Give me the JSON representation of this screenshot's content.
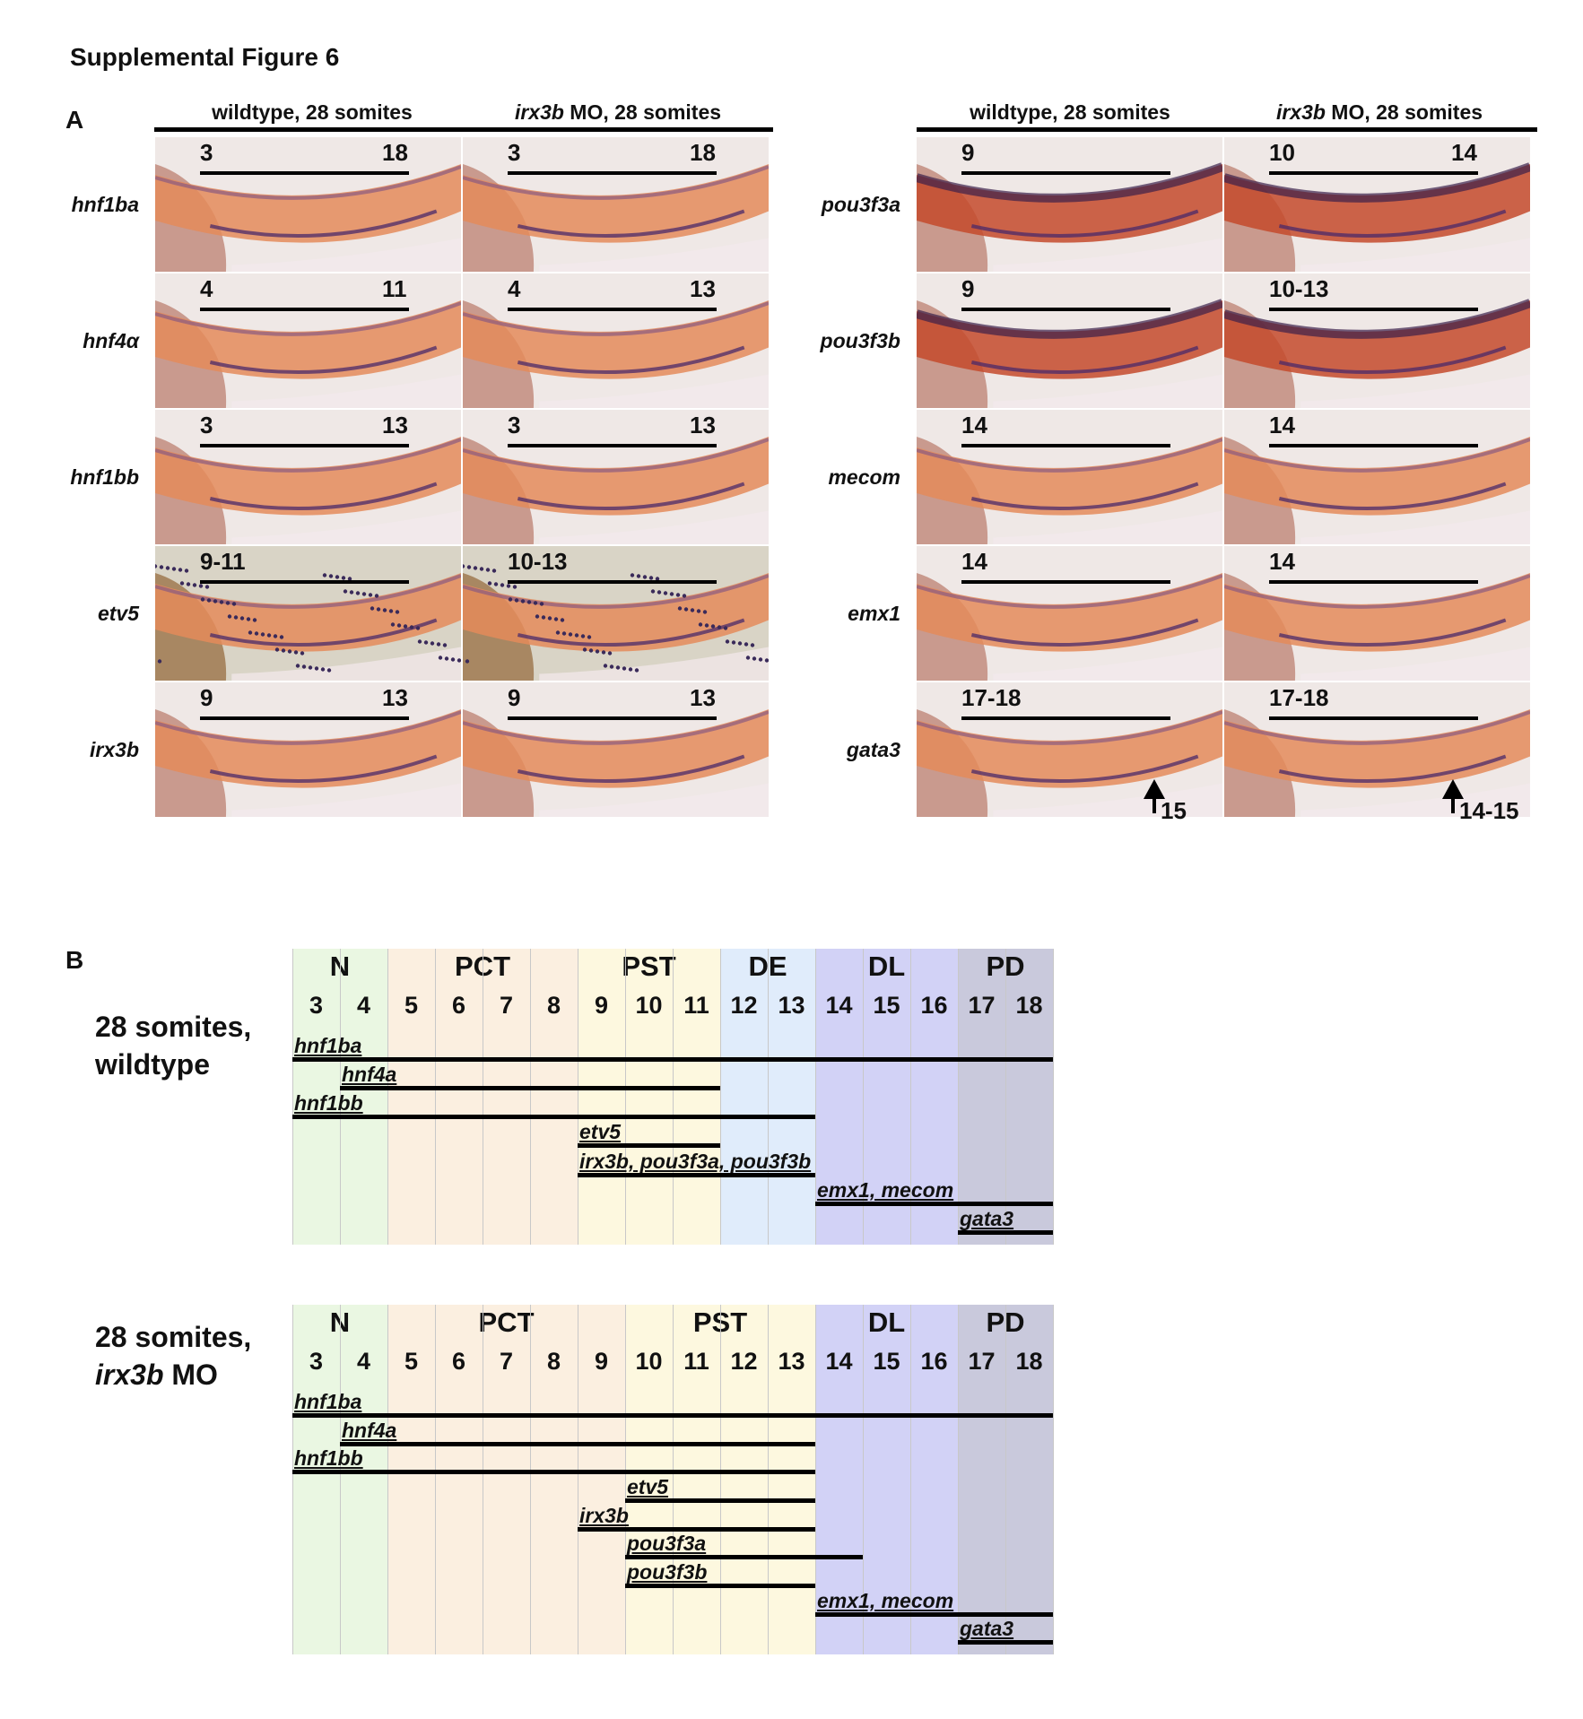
{
  "figure_title": "Supplemental Figure 6",
  "panel_a": {
    "letter": "A",
    "left_headers": {
      "wt": "wildtype, 28 somites",
      "mo_gene": "irx3b",
      "mo_rest": " MO, 28 somites"
    },
    "right_headers": {
      "wt": "wildtype, 28 somites",
      "mo_gene": "irx3b",
      "mo_rest": " MO, 28 somites"
    },
    "left_rows": [
      {
        "gene": "hnf1ba",
        "wt": {
          "a": "3",
          "b": "18"
        },
        "mo": {
          "a": "3",
          "b": "18"
        }
      },
      {
        "gene": "hnf4α",
        "wt": {
          "a": "4",
          "b": "11"
        },
        "mo": {
          "a": "4",
          "b": "13"
        }
      },
      {
        "gene": "hnf1bb",
        "wt": {
          "a": "3",
          "b": "13"
        },
        "mo": {
          "a": "3",
          "b": "13"
        }
      },
      {
        "gene": "etv5",
        "wt": {
          "a": "9-11",
          "b": ""
        },
        "mo": {
          "a": "10-13",
          "b": ""
        }
      },
      {
        "gene": "irx3b",
        "wt": {
          "a": "9",
          "b": "13"
        },
        "mo": {
          "a": "9",
          "b": "13"
        }
      }
    ],
    "right_rows": [
      {
        "gene": "pou3f3a",
        "wt": {
          "a": "9",
          "b": ""
        },
        "mo": {
          "a": "10",
          "b": "14"
        }
      },
      {
        "gene": "pou3f3b",
        "wt": {
          "a": "9",
          "b": ""
        },
        "mo": {
          "a": "10-13",
          "b": ""
        }
      },
      {
        "gene": "mecom",
        "wt": {
          "a": "14",
          "b": ""
        },
        "mo": {
          "a": "14",
          "b": ""
        }
      },
      {
        "gene": "emx1",
        "wt": {
          "a": "14",
          "b": ""
        },
        "mo": {
          "a": "14",
          "b": ""
        }
      },
      {
        "gene": "gata3",
        "wt": {
          "a": "17-18",
          "b": ""
        },
        "mo": {
          "a": "17-18",
          "b": ""
        }
      }
    ],
    "gata3_arrows": {
      "wt": "15",
      "mo": "14-15"
    }
  },
  "panel_b": {
    "letter": "B",
    "wildtype": {
      "label_line1": "28 somites,",
      "label_line2": "wildtype",
      "zones": [
        {
          "name": "N",
          "from": 3,
          "to": 4,
          "color": "#eaf7e2"
        },
        {
          "name": "PCT",
          "from": 5,
          "to": 8,
          "color": "#fbefe0"
        },
        {
          "name": "PST",
          "from": 9,
          "to": 11,
          "color": "#fdf8df"
        },
        {
          "name": "DE",
          "from": 12,
          "to": 13,
          "color": "#e0ecfb"
        },
        {
          "name": "DL",
          "from": 14,
          "to": 16,
          "color": "#d2d2f6"
        },
        {
          "name": "PD",
          "from": 17,
          "to": 18,
          "color": "#c9c9dc"
        }
      ],
      "segments": [
        "3",
        "4",
        "5",
        "6",
        "7",
        "8",
        "9",
        "10",
        "11",
        "12",
        "13",
        "14",
        "15",
        "16",
        "17",
        "18"
      ],
      "genes": [
        {
          "label": "hnf1ba",
          "from": 3,
          "to": 18
        },
        {
          "label": "hnf4a",
          "from": 4,
          "to": 11
        },
        {
          "label": "hnf1bb",
          "from": 3,
          "to": 13
        },
        {
          "label": "etv5",
          "from": 9,
          "to": 11
        },
        {
          "label": "irx3b, pou3f3a, pou3f3b",
          "from": 9,
          "to": 13
        },
        {
          "label": "emx1, mecom",
          "from": 14,
          "to": 18
        },
        {
          "label": "gata3",
          "from": 17,
          "to": 18
        }
      ]
    },
    "morphant": {
      "label_line1": "28 somites,",
      "label_gene": "irx3b",
      "label_rest": " MO",
      "zones": [
        {
          "name": "N",
          "from": 3,
          "to": 4,
          "color": "#eaf7e2"
        },
        {
          "name": "PCT",
          "from": 5,
          "to": 9,
          "color": "#fbefe0"
        },
        {
          "name": "PST",
          "from": 10,
          "to": 13,
          "color": "#fdf8df"
        },
        {
          "name": "DL",
          "from": 14,
          "to": 16,
          "color": "#d2d2f6"
        },
        {
          "name": "PD",
          "from": 17,
          "to": 18,
          "color": "#c9c9dc"
        }
      ],
      "segments": [
        "3",
        "4",
        "5",
        "6",
        "7",
        "8",
        "9",
        "10",
        "11",
        "12",
        "13",
        "14",
        "15",
        "16",
        "17",
        "18"
      ],
      "genes": [
        {
          "label": "hnf1ba",
          "from": 3,
          "to": 18
        },
        {
          "label": "hnf4a",
          "from": 4,
          "to": 13
        },
        {
          "label": "hnf1bb",
          "from": 3,
          "to": 13
        },
        {
          "label": "etv5",
          "from": 10,
          "to": 13
        },
        {
          "label": "irx3b",
          "from": 9,
          "to": 13
        },
        {
          "label": "pou3f3a",
          "from": 10,
          "to": 14
        },
        {
          "label": "pou3f3b",
          "from": 10,
          "to": 13
        },
        {
          "label": "emx1, mecom",
          "from": 14,
          "to": 18
        },
        {
          "label": "gata3",
          "from": 17,
          "to": 18
        }
      ]
    }
  }
}
